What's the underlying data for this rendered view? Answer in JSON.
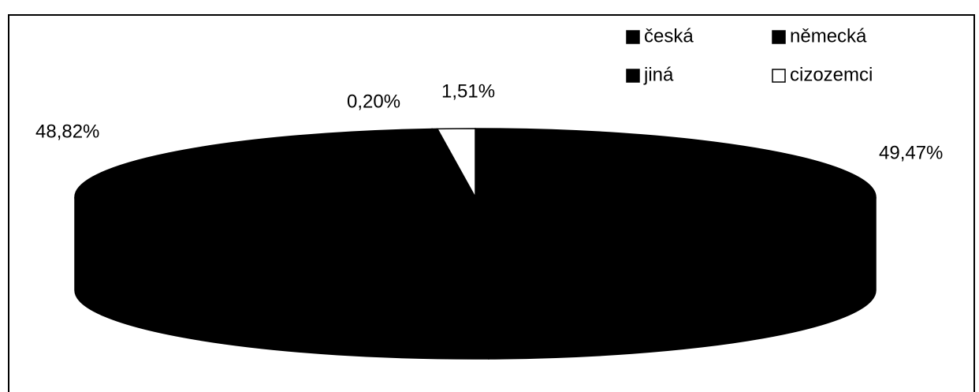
{
  "chart_data": {
    "type": "pie",
    "categories": [
      "česká",
      "německá",
      "jiná",
      "cizozemci"
    ],
    "values": [
      49.47,
      48.82,
      0.2,
      1.51
    ],
    "value_labels": [
      "49,47%",
      "48,82%",
      "0,20%",
      "1,51%"
    ],
    "colors": [
      "#000000",
      "#000000",
      "#000000",
      "#ffffff"
    ],
    "legend": "top-right"
  }
}
